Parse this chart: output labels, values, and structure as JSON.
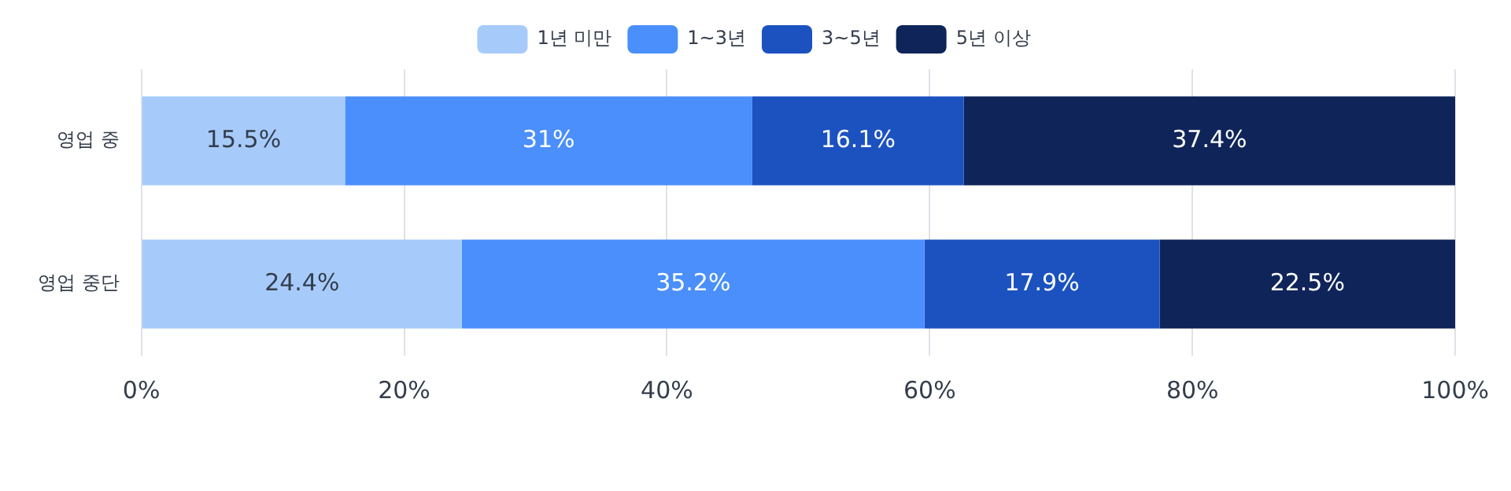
{
  "chart_data": {
    "type": "bar",
    "orientation": "horizontal",
    "stacked": true,
    "categories": [
      "영업 중",
      "영업 중단"
    ],
    "series": [
      {
        "name": "1년 미만",
        "color": "#a6cbfb",
        "values": [
          15.5,
          24.4
        ],
        "value_labels": [
          "15.5%",
          "24.4%"
        ]
      },
      {
        "name": "1~3년",
        "color": "#4a8ffb",
        "values": [
          31,
          35.2
        ],
        "value_labels": [
          "31%",
          "35.2%"
        ]
      },
      {
        "name": "3~5년",
        "color": "#1c52c0",
        "values": [
          16.1,
          17.9
        ],
        "value_labels": [
          "16.1%",
          "17.9%"
        ]
      },
      {
        "name": "5년 이상",
        "color": "#0f2459",
        "values": [
          37.4,
          22.5
        ],
        "value_labels": [
          "37.4%",
          "22.5%"
        ]
      }
    ],
    "xlim": [
      0,
      100
    ],
    "xticks": [
      {
        "value": 0,
        "label": "0%"
      },
      {
        "value": 20,
        "label": "20%"
      },
      {
        "value": 40,
        "label": "40%"
      },
      {
        "value": 60,
        "label": "60%"
      },
      {
        "value": 80,
        "label": "80%"
      },
      {
        "value": 100,
        "label": "100%"
      }
    ],
    "grid": "x",
    "legend": "top"
  }
}
